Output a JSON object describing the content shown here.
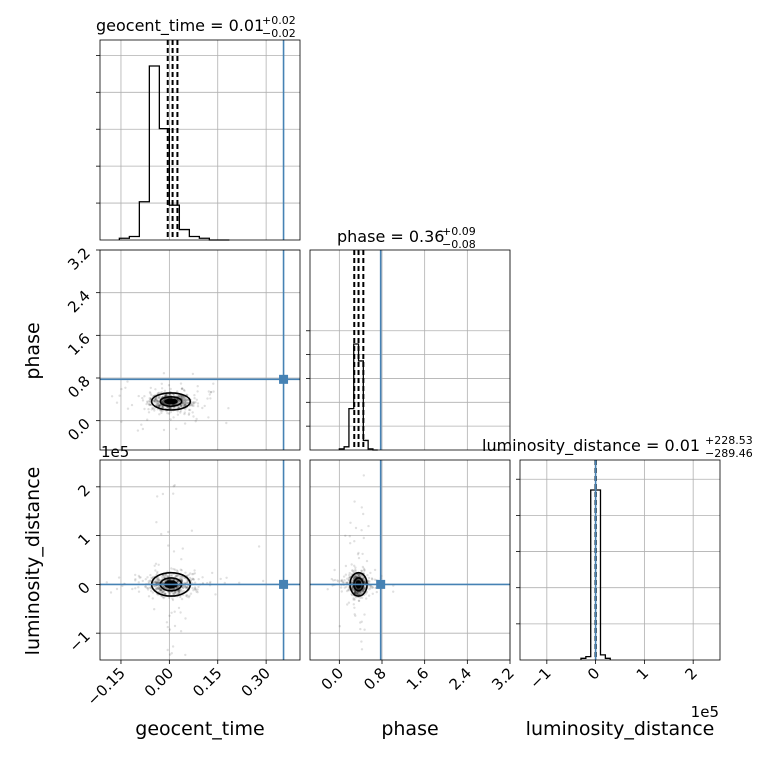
{
  "chart_data": {
    "type": "corner",
    "parameters": [
      {
        "name": "geocent_time",
        "title_prefix": "geocent_time = ",
        "median": "0.01",
        "plus": "+0.02",
        "minus": "−0.02",
        "truth": 0.354,
        "range": [
          -0.215,
          0.405
        ],
        "ticks": [
          -0.15,
          0.0,
          0.15,
          0.3
        ],
        "tick_labels": [
          "−0.15",
          "0.00",
          "0.15",
          "0.30"
        ],
        "xlabel": "geocent_time",
        "hist_edges": [
          -0.155,
          -0.124,
          -0.093,
          -0.062,
          -0.031,
          0.0,
          0.031,
          0.062,
          0.093,
          0.124,
          0.155,
          0.186
        ],
        "hist_counts": [
          1,
          2,
          22,
          100,
          64,
          20,
          6,
          2,
          1,
          0,
          0
        ],
        "quantiles": [
          -0.005,
          0.01,
          0.025
        ]
      },
      {
        "name": "phase",
        "title_prefix": "phase = ",
        "median": "0.36",
        "plus": "+0.09",
        "minus": "−0.08",
        "truth": 0.775,
        "range": [
          -0.55,
          3.2
        ],
        "ticks": [
          0.0,
          0.8,
          1.6,
          2.4,
          3.2
        ],
        "tick_labels": [
          "0.0",
          "0.8",
          "1.6",
          "2.4",
          "3.2"
        ],
        "xlabel": "phase",
        "ylabel": "phase",
        "hist_edges": [
          0.0,
          0.09,
          0.18,
          0.27,
          0.36,
          0.45,
          0.54,
          0.63,
          0.72
        ],
        "hist_counts": [
          1,
          3,
          39,
          100,
          84,
          9,
          1,
          0
        ],
        "quantiles": [
          0.28,
          0.36,
          0.45
        ]
      },
      {
        "name": "luminosity_distance",
        "title_prefix": "luminosity_distance = ",
        "median": "0.01",
        "plus": "+228.53",
        "minus": "−289.46",
        "truth": 0.0,
        "range": [
          -1.55,
          2.55
        ],
        "ticks": [
          -1,
          0,
          1,
          2
        ],
        "tick_labels": [
          "−1",
          "0",
          "1",
          "2"
        ],
        "multiplier": "1e5",
        "xlabel": "luminosity_distance",
        "ylabel": "luminosity_distance",
        "hist_edges": [
          -0.3,
          -0.2,
          -0.1,
          0.0,
          0.1,
          0.2,
          0.3
        ],
        "hist_counts": [
          1,
          2,
          100,
          100,
          3,
          1
        ],
        "quantiles": [
          -0.003,
          0.0,
          0.003
        ]
      }
    ],
    "grid": true
  }
}
